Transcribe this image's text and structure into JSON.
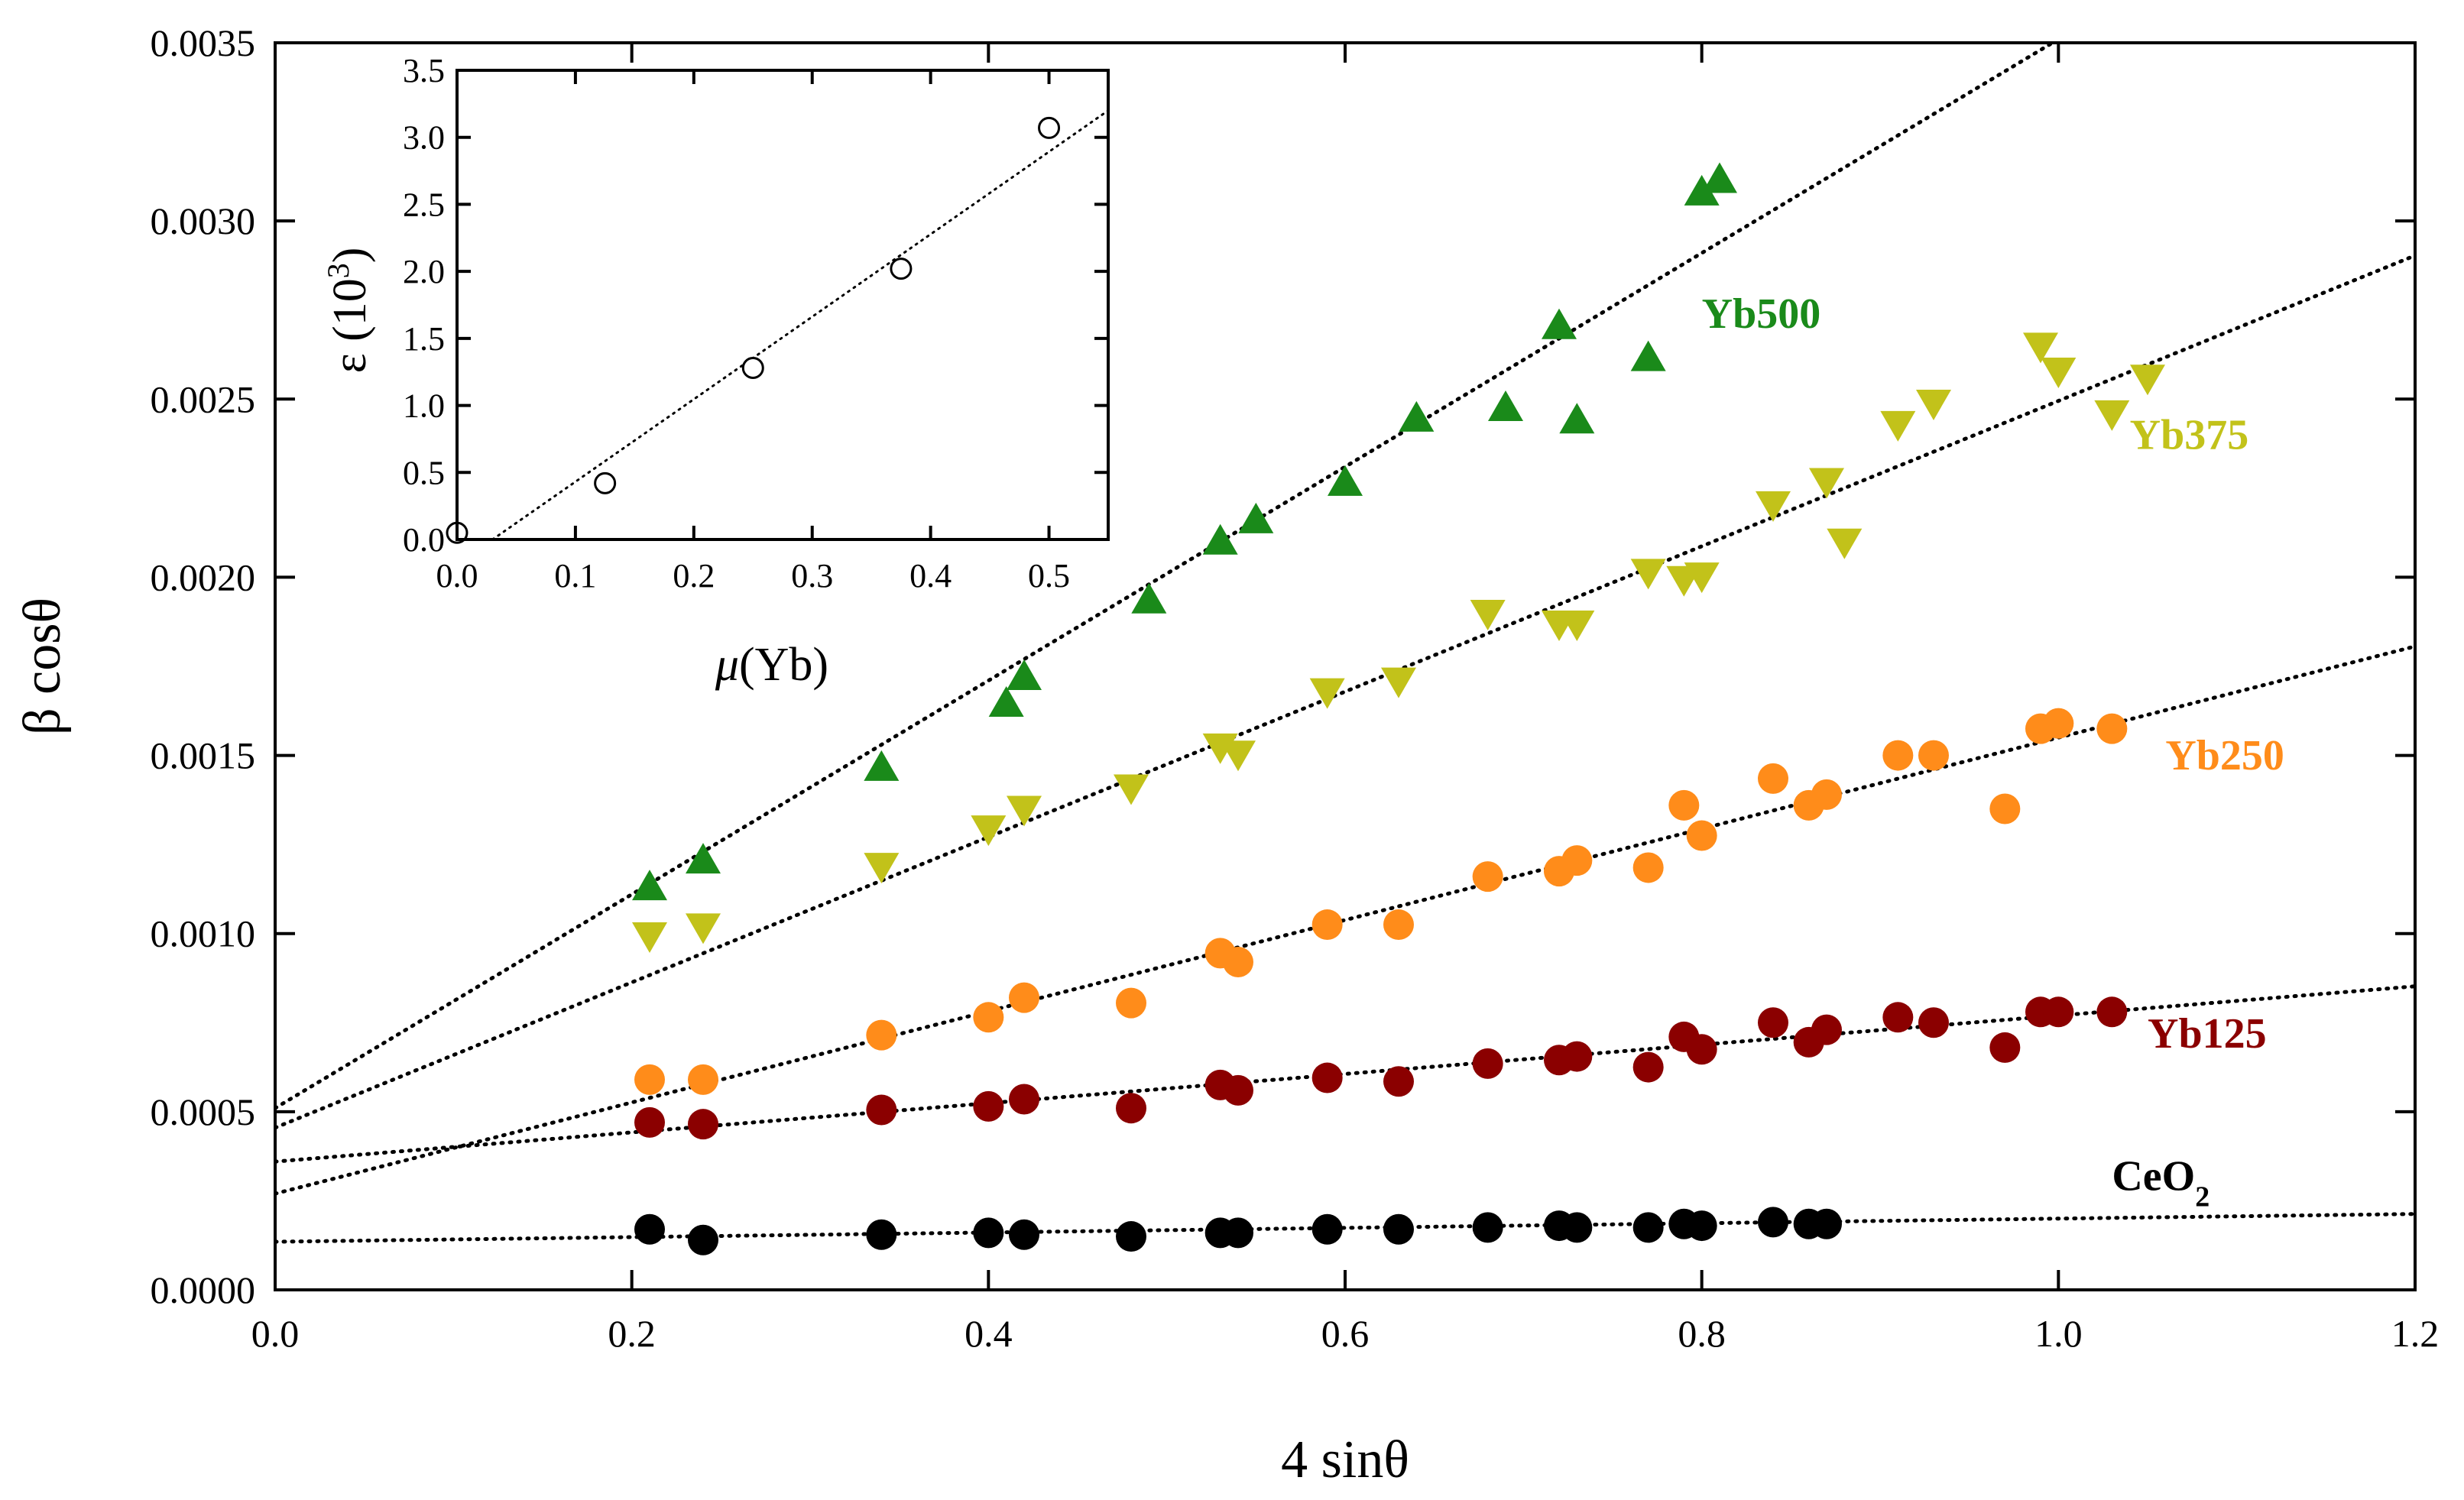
{
  "chart_data": [
    {
      "type": "scatter",
      "xlabel": "4 sinθ",
      "ylabel": "β cosθ",
      "xlim": [
        0.0,
        1.2
      ],
      "ylim": [
        0.0,
        0.0035
      ],
      "xticks": [
        "0.0",
        "0.2",
        "0.4",
        "0.6",
        "0.8",
        "1.0",
        "1.2"
      ],
      "xtick_values": [
        0.0,
        0.2,
        0.4,
        0.6,
        0.8,
        1.0,
        1.2
      ],
      "yticks": [
        "0.0000",
        "0.0005",
        "0.0010",
        "0.0015",
        "0.0020",
        "0.0025",
        "0.0030",
        "0.0035"
      ],
      "ytick_values": [
        0.0,
        0.0005,
        0.001,
        0.0015,
        0.002,
        0.0025,
        0.003,
        0.0035
      ],
      "grid": false,
      "series": [
        {
          "name": "CeO₂",
          "label_main": "CeO",
          "label_sub": "2",
          "color": "#000000",
          "marker": "circle",
          "label_pos": [
            1.03,
            0.00028
          ],
          "fit": {
            "intercept": 0.000135,
            "slope": 6.5e-05
          },
          "x": [
            0.21,
            0.24,
            0.34,
            0.4,
            0.42,
            0.48,
            0.53,
            0.54,
            0.59,
            0.63,
            0.68,
            0.72,
            0.73,
            0.77,
            0.79,
            0.8,
            0.84,
            0.86,
            0.87
          ],
          "y": [
            0.00017,
            0.00014,
            0.000155,
            0.00016,
            0.000155,
            0.00015,
            0.00016,
            0.00016,
            0.00017,
            0.00017,
            0.000175,
            0.00018,
            0.000175,
            0.000175,
            0.000185,
            0.00018,
            0.00019,
            0.000185,
            0.000185
          ]
        },
        {
          "name": "Yb125",
          "label_main": "Yb125",
          "label_sub": "",
          "color": "#8b0000",
          "marker": "circle",
          "label_pos": [
            1.05,
            0.00068
          ],
          "fit": {
            "intercept": 0.00036,
            "slope": 0.00041
          },
          "x": [
            0.21,
            0.24,
            0.34,
            0.4,
            0.42,
            0.48,
            0.53,
            0.54,
            0.59,
            0.63,
            0.68,
            0.72,
            0.73,
            0.77,
            0.79,
            0.8,
            0.84,
            0.86,
            0.87,
            0.91,
            0.93,
            0.97,
            0.99,
            1.0,
            1.03
          ],
          "y": [
            0.00047,
            0.000465,
            0.000505,
            0.000515,
            0.000535,
            0.00051,
            0.000575,
            0.00056,
            0.000595,
            0.000585,
            0.000635,
            0.000645,
            0.000655,
            0.000625,
            0.00071,
            0.000675,
            0.00075,
            0.000695,
            0.00073,
            0.000765,
            0.00075,
            0.00068,
            0.00078,
            0.00078,
            0.00078
          ]
        },
        {
          "name": "Yb250",
          "label_main": "Yb250",
          "label_sub": "",
          "color": "#ff8c1a",
          "marker": "circle",
          "label_pos": [
            1.06,
            0.00146
          ],
          "fit": {
            "intercept": 0.00027,
            "slope": 0.00128
          },
          "x": [
            0.21,
            0.24,
            0.34,
            0.4,
            0.42,
            0.48,
            0.53,
            0.54,
            0.59,
            0.63,
            0.68,
            0.72,
            0.73,
            0.77,
            0.79,
            0.8,
            0.84,
            0.86,
            0.87,
            0.91,
            0.93,
            0.97,
            0.99,
            1.0,
            1.03
          ],
          "y": [
            0.00059,
            0.00059,
            0.000715,
            0.000765,
            0.00082,
            0.000805,
            0.000945,
            0.00092,
            0.001025,
            0.001025,
            0.00116,
            0.001175,
            0.001205,
            0.001185,
            0.00136,
            0.001275,
            0.001435,
            0.00136,
            0.00139,
            0.0015,
            0.0015,
            0.00135,
            0.001575,
            0.00159,
            0.001575
          ]
        },
        {
          "name": "Yb375",
          "label_main": "Yb375",
          "label_sub": "",
          "color": "#c2c21a",
          "marker": "triangle-down",
          "label_pos": [
            1.04,
            0.00236
          ],
          "fit": {
            "intercept": 0.000455,
            "slope": 0.00204
          },
          "x": [
            0.21,
            0.24,
            0.34,
            0.4,
            0.42,
            0.48,
            0.53,
            0.54,
            0.59,
            0.63,
            0.68,
            0.72,
            0.73,
            0.77,
            0.79,
            0.8,
            0.84,
            0.87,
            0.88,
            0.91,
            0.93,
            0.99,
            1.0,
            1.03,
            1.05
          ],
          "y": [
            0.000995,
            0.00102,
            0.00119,
            0.001295,
            0.00135,
            0.00141,
            0.001525,
            0.001505,
            0.00168,
            0.00171,
            0.0019,
            0.00187,
            0.00187,
            0.002015,
            0.001995,
            0.002005,
            0.002205,
            0.00227,
            0.0021,
            0.00243,
            0.00249,
            0.00265,
            0.00258,
            0.00246,
            0.00256
          ]
        },
        {
          "name": "Yb500",
          "label_main": "Yb500",
          "label_sub": "",
          "color": "#1a8a1a",
          "marker": "triangle-up",
          "label_pos": [
            0.8,
            0.0027
          ],
          "fit": {
            "intercept": 0.00051,
            "slope": 0.003
          },
          "x": [
            0.21,
            0.24,
            0.34,
            0.41,
            0.42,
            0.49,
            0.53,
            0.55,
            0.6,
            0.64,
            0.69,
            0.72,
            0.73,
            0.77,
            0.8,
            0.81
          ],
          "y": [
            0.00113,
            0.001205,
            0.001465,
            0.001645,
            0.00172,
            0.001935,
            0.0021,
            0.00216,
            0.002265,
            0.002445,
            0.002475,
            0.002705,
            0.00244,
            0.002615,
            0.00308,
            0.003115
          ]
        }
      ]
    },
    {
      "type": "scatter",
      "name": "inset",
      "xlabel_main": "μ",
      "xlabel_rest": "(Yb)",
      "ylabel_main": "ε (10",
      "ylabel_sup": "3",
      "ylabel_end": ")",
      "xlim": [
        0.0,
        0.55
      ],
      "ylim": [
        0.0,
        3.5
      ],
      "xticks": [
        "0.0",
        "0.1",
        "0.2",
        "0.3",
        "0.4",
        "0.5"
      ],
      "xtick_values": [
        0.0,
        0.1,
        0.2,
        0.3,
        0.4,
        0.5
      ],
      "yticks": [
        "0.0",
        "0.5",
        "1.0",
        "1.5",
        "2.0",
        "2.5",
        "3.0",
        "3.5"
      ],
      "ytick_values": [
        0.0,
        0.5,
        1.0,
        1.5,
        2.0,
        2.5,
        3.0,
        3.5
      ],
      "marker": "circle-open",
      "fit": {
        "x": [
          0.03,
          0.55
        ],
        "y": [
          0.0,
          3.2
        ]
      },
      "x": [
        0.0,
        0.125,
        0.25,
        0.375,
        0.5
      ],
      "y": [
        0.05,
        0.42,
        1.28,
        2.02,
        3.07
      ]
    }
  ]
}
